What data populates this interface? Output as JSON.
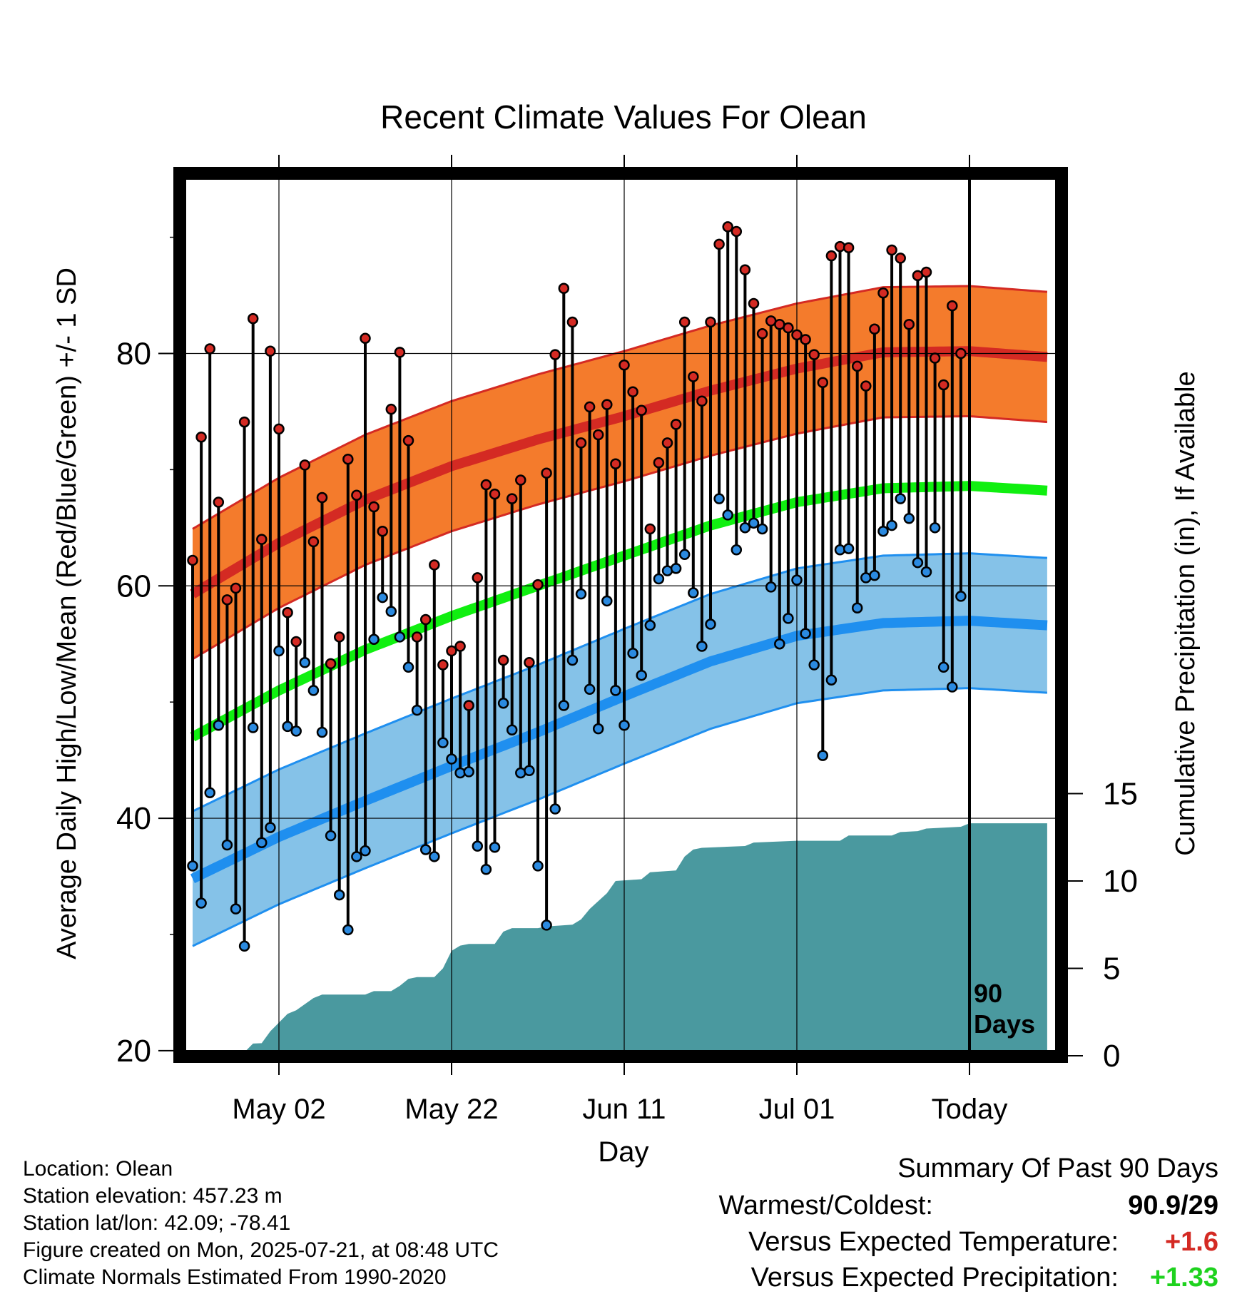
{
  "chart_data": {
    "type": "line",
    "title": "Recent Climate Values For Olean",
    "xlabel": "Day",
    "ylabel": "Average Daily High/Low/Mean (Red/Blue/Green) +/- 1 SD",
    "y2label": "Cumulative Precipitation (in), If Available",
    "x_tick_labels": [
      "May 02",
      "May 22",
      "Jun 11",
      "Jul 01",
      "Today"
    ],
    "x_tick_days": [
      10,
      30,
      50,
      70,
      90
    ],
    "y_ticks": [
      20,
      40,
      60,
      80
    ],
    "ylim": [
      19.5,
      95.5
    ],
    "y2_ticks": [
      0,
      5,
      10,
      15
    ],
    "y2lim": [
      0,
      15
    ],
    "today_marker_label": [
      "90",
      "Days"
    ],
    "days_start": "2025-04-22",
    "daily_high": [
      62.2,
      72.8,
      80.4,
      67.2,
      58.8,
      59.8,
      74.1,
      83.0,
      64.0,
      80.2,
      73.5,
      57.7,
      55.2,
      70.4,
      63.8,
      67.6,
      53.3,
      55.6,
      70.9,
      67.8,
      81.3,
      66.8,
      64.7,
      75.2,
      80.1,
      72.5,
      55.6,
      57.1,
      61.8,
      53.2,
      54.4,
      54.8,
      49.7,
      60.7,
      68.7,
      67.9,
      53.6,
      67.5,
      69.1,
      53.4,
      60.1,
      69.7,
      79.9,
      85.6,
      82.7,
      72.3,
      75.4,
      73.0,
      75.6,
      70.5,
      79.0,
      76.7,
      75.1,
      64.9,
      70.6,
      72.3,
      73.9,
      82.7,
      78.0,
      75.9,
      82.7,
      89.4,
      90.9,
      90.5,
      87.2,
      84.3,
      81.7,
      82.8,
      82.5,
      82.2,
      81.6,
      81.2,
      79.9,
      77.5,
      88.4,
      89.2,
      89.1,
      78.9,
      77.2,
      82.1,
      85.2,
      88.9,
      88.2,
      82.5,
      86.7,
      87.0,
      79.6,
      77.3,
      84.1,
      80.0
    ],
    "daily_low": [
      35.9,
      32.7,
      42.2,
      48.0,
      37.7,
      32.2,
      29.0,
      47.8,
      37.9,
      39.2,
      54.4,
      47.9,
      47.5,
      53.4,
      51.0,
      47.4,
      38.5,
      33.4,
      30.4,
      36.7,
      37.2,
      55.4,
      59.0,
      57.8,
      55.6,
      53.0,
      49.3,
      37.3,
      36.7,
      46.5,
      45.1,
      43.9,
      44.0,
      37.6,
      35.6,
      37.5,
      49.9,
      47.6,
      43.9,
      44.1,
      35.9,
      30.8,
      40.8,
      49.7,
      53.6,
      59.3,
      51.1,
      47.7,
      58.7,
      51.0,
      48.0,
      54.2,
      52.3,
      56.6,
      60.6,
      61.3,
      61.5,
      62.7,
      59.4,
      54.8,
      56.7,
      67.5,
      66.1,
      63.1,
      65.0,
      65.4,
      64.9,
      59.9,
      55.0,
      57.2,
      60.5,
      55.9,
      53.2,
      45.4,
      51.9,
      63.1,
      63.2,
      58.1,
      60.7,
      60.9,
      64.7,
      65.2,
      67.5,
      65.8,
      62.0,
      61.2,
      65.0,
      53.0,
      51.3,
      59.1
    ],
    "normal_high_mean_points": [
      [
        0,
        59.3
      ],
      [
        10,
        63.7
      ],
      [
        20,
        67.4
      ],
      [
        30,
        70.3
      ],
      [
        40,
        72.6
      ],
      [
        50,
        74.6
      ],
      [
        60,
        76.8
      ],
      [
        70,
        78.7
      ],
      [
        80,
        80.1
      ],
      [
        90,
        80.2
      ],
      [
        99,
        79.7
      ]
    ],
    "normal_high_sd": 5.6,
    "normal_low_mean_points": [
      [
        0,
        34.8
      ],
      [
        10,
        38.4
      ],
      [
        20,
        41.5
      ],
      [
        30,
        44.5
      ],
      [
        40,
        47.4
      ],
      [
        50,
        50.5
      ],
      [
        60,
        53.5
      ],
      [
        70,
        55.7
      ],
      [
        80,
        56.8
      ],
      [
        90,
        57.0
      ],
      [
        99,
        56.6
      ]
    ],
    "normal_low_sd": 5.8,
    "normal_mean_points": [
      [
        0,
        47.0
      ],
      [
        10,
        51.0
      ],
      [
        20,
        54.5
      ],
      [
        30,
        57.4
      ],
      [
        40,
        60.0
      ],
      [
        50,
        62.6
      ],
      [
        60,
        65.2
      ],
      [
        70,
        67.2
      ],
      [
        80,
        68.4
      ],
      [
        90,
        68.6
      ],
      [
        99,
        68.2
      ]
    ],
    "precip_points": [
      [
        0,
        0
      ],
      [
        3,
        0.05
      ],
      [
        6,
        0.2
      ],
      [
        7,
        0.7
      ],
      [
        8,
        0.72
      ],
      [
        9,
        1.4
      ],
      [
        11,
        2.4
      ],
      [
        12,
        2.6
      ],
      [
        14,
        3.3
      ],
      [
        15,
        3.5
      ],
      [
        20,
        3.5
      ],
      [
        21,
        3.7
      ],
      [
        23,
        3.7
      ],
      [
        24,
        4.0
      ],
      [
        25,
        4.4
      ],
      [
        26,
        4.5
      ],
      [
        28,
        4.5
      ],
      [
        29,
        5.0
      ],
      [
        30,
        6.0
      ],
      [
        31,
        6.3
      ],
      [
        32,
        6.4
      ],
      [
        35,
        6.4
      ],
      [
        36,
        7.1
      ],
      [
        37,
        7.3
      ],
      [
        40,
        7.3
      ],
      [
        41,
        7.4
      ],
      [
        44,
        7.5
      ],
      [
        45,
        7.8
      ],
      [
        46,
        8.4
      ],
      [
        48,
        9.3
      ],
      [
        49,
        10.0
      ],
      [
        52,
        10.1
      ],
      [
        53,
        10.5
      ],
      [
        56,
        10.6
      ],
      [
        57,
        11.4
      ],
      [
        58,
        11.8
      ],
      [
        59,
        11.9
      ],
      [
        64,
        12.0
      ],
      [
        65,
        12.2
      ],
      [
        70,
        12.3
      ],
      [
        75,
        12.3
      ],
      [
        76,
        12.6
      ],
      [
        81,
        12.6
      ],
      [
        82,
        12.8
      ],
      [
        84,
        12.85
      ],
      [
        85,
        13.0
      ],
      [
        89,
        13.1
      ],
      [
        90,
        13.3
      ],
      [
        99,
        13.3
      ]
    ],
    "colors": {
      "high_band": "#f47b2c",
      "high_line": "#d42a23",
      "low_band": "#85c2e8",
      "low_line": "#1f8fef",
      "mean_line": "#10ef10",
      "precip": "#4a999f",
      "high_dot": "#d42a23",
      "low_dot": "#2b8ae0"
    },
    "grid": true,
    "legend": "none"
  },
  "info": [
    "Location: Olean",
    "Station elevation: 457.23 m",
    "Station lat/lon: 42.09; -78.41",
    "Figure created on Mon, 2025-07-21, at 08:48 UTC",
    "Climate Normals Estimated From 1990-2020"
  ],
  "summary": {
    "title": "Summary Of Past 90 Days",
    "warmest_coldest_label": "Warmest/Coldest:",
    "warmest_coldest_value": "90.9/29",
    "temp_label": "Versus Expected Temperature:",
    "temp_value": "+1.6",
    "temp_color": "#d42a23",
    "precip_label": "Versus Expected Precipitation:",
    "precip_value": "+1.33",
    "precip_color": "#1ed21e"
  }
}
